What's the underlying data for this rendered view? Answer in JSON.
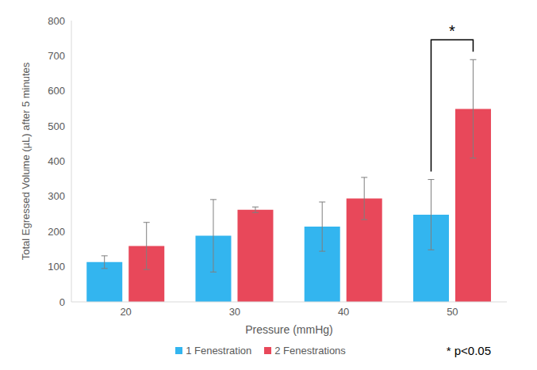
{
  "chart_data": {
    "type": "bar",
    "x_label": "Pressure (mmHg)",
    "y_label": "Total Egressed Volume (µL) after 5 minutes",
    "categories": [
      "20",
      "30",
      "40",
      "50"
    ],
    "series": [
      {
        "name": "1 Fenestration",
        "color": "#33b5ef",
        "values": [
          113,
          188,
          214,
          248
        ],
        "errors": [
          18,
          103,
          70,
          100
        ]
      },
      {
        "name": "2 Fenestrations",
        "color": "#e8485a",
        "values": [
          159,
          262,
          294,
          549
        ],
        "errors": [
          67,
          8,
          60,
          140
        ]
      }
    ],
    "ylim": [
      0,
      800
    ],
    "yticks": [
      0,
      100,
      200,
      300,
      400,
      500,
      600,
      700,
      800
    ],
    "grid": false,
    "legend": "bottom",
    "annotations": [
      {
        "text": "*",
        "category": "50",
        "between": [
          "1 Fenestration",
          "2 Fenestrations"
        ]
      },
      {
        "text": "* p<0.05"
      }
    ]
  }
}
